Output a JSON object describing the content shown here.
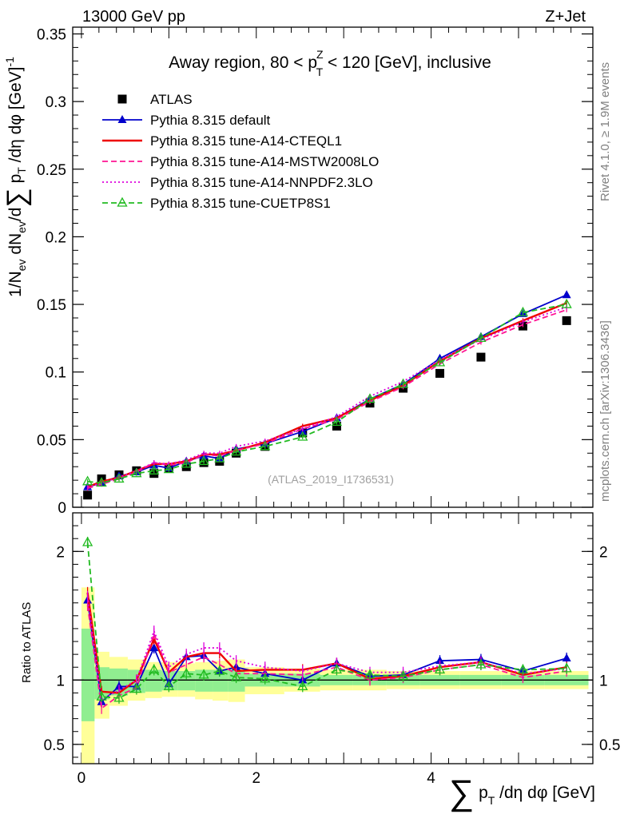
{
  "header": {
    "left": "13000 GeV pp",
    "right": "Z+Jet"
  },
  "side": {
    "rivet": "Rivet 4.1.0, ≥ 1.9M events",
    "mcplots": "mcplots.cern.ch [arXiv:1306.3436]"
  },
  "chart_data": [
    {
      "type": "scatter",
      "panel": "main",
      "title": "Away region, 80 < p_T^Z < 120 [GeV], inclusive",
      "ylabel": "1/N_ev dN_ev/d∑p_T /dη dφ [GeV^-1]",
      "xlabel": "∑p_T /dη dφ [GeV]",
      "watermark": "(ATLAS_2019_I1736531)",
      "xlim": [
        -0.1,
        5.85
      ],
      "ylim": [
        0,
        0.355
      ],
      "yticks": [
        0,
        0.05,
        0.1,
        0.15,
        0.2,
        0.25,
        0.3,
        0.35
      ],
      "ytick_labels": [
        "0",
        "0.05",
        "0.1",
        "0.15",
        "0.2",
        "0.25",
        "0.3",
        "0.35"
      ],
      "x": [
        0.07,
        0.23,
        0.43,
        0.63,
        0.83,
        1.0,
        1.2,
        1.4,
        1.58,
        1.77,
        2.1,
        2.53,
        2.92,
        3.3,
        3.68,
        4.1,
        4.57,
        5.05,
        5.55
      ],
      "series": [
        {
          "name": "ATLAS",
          "style": "data",
          "color": "#000000",
          "values": [
            0.009,
            0.021,
            0.024,
            0.027,
            0.025,
            0.029,
            0.03,
            0.033,
            0.034,
            0.04,
            0.045,
            0.055,
            0.06,
            0.077,
            0.088,
            0.099,
            0.111,
            0.134,
            0.138
          ]
        },
        {
          "name": "Pythia 8.315 default",
          "style": "solid-triangle",
          "color": "#0000cc",
          "values": [
            0.015,
            0.018,
            0.023,
            0.026,
            0.031,
            0.029,
            0.034,
            0.038,
            0.036,
            0.043,
            0.047,
            0.056,
            0.066,
            0.08,
            0.091,
            0.11,
            0.126,
            0.143,
            0.157
          ]
        },
        {
          "name": "Pythia 8.315 tune-A14-CTEQL1",
          "style": "solid",
          "color": "#ee0000",
          "values": [
            0.015,
            0.019,
            0.022,
            0.027,
            0.032,
            0.032,
            0.034,
            0.039,
            0.039,
            0.042,
            0.048,
            0.06,
            0.066,
            0.079,
            0.09,
            0.108,
            0.125,
            0.138,
            0.151
          ]
        },
        {
          "name": "Pythia 8.315 tune-A14-MSTW2008LO",
          "style": "dashed",
          "color": "#ff1493",
          "values": [
            0.014,
            0.017,
            0.021,
            0.026,
            0.033,
            0.031,
            0.033,
            0.039,
            0.038,
            0.042,
            0.047,
            0.058,
            0.065,
            0.078,
            0.089,
            0.106,
            0.122,
            0.135,
            0.146
          ]
        },
        {
          "name": "Pythia 8.315 tune-A14-NNPDF2.3LO",
          "style": "dotted",
          "color": "#dd00dd",
          "values": [
            0.015,
            0.018,
            0.022,
            0.027,
            0.033,
            0.032,
            0.035,
            0.04,
            0.04,
            0.045,
            0.049,
            0.058,
            0.067,
            0.082,
            0.093,
            0.109,
            0.124,
            0.137,
            0.148
          ]
        },
        {
          "name": "Pythia 8.315 tune-CUETP8S1",
          "style": "dashed-open-triangle",
          "color": "#22bb22",
          "values": [
            0.019,
            0.018,
            0.021,
            0.025,
            0.027,
            0.028,
            0.032,
            0.034,
            0.036,
            0.041,
            0.045,
            0.052,
            0.063,
            0.08,
            0.091,
            0.107,
            0.125,
            0.144,
            0.15
          ]
        }
      ]
    },
    {
      "type": "line",
      "panel": "ratio",
      "ylabel": "Ratio to ATLAS",
      "ylim": [
        0.35,
        2.3
      ],
      "yticks": [
        0.5,
        1,
        2
      ],
      "ytick_labels": [
        "0.5",
        "1",
        "2"
      ],
      "xticks": [
        0,
        2,
        4
      ],
      "xtick_labels": [
        "0",
        "2",
        "4"
      ],
      "bands": {
        "edges": [
          0.0,
          0.15,
          0.32,
          0.53,
          0.73,
          0.92,
          1.1,
          1.3,
          1.5,
          1.68,
          1.87,
          2.32,
          2.73,
          3.1,
          3.49,
          3.87,
          4.33,
          4.8,
          5.3,
          5.8
        ],
        "yellow": [
          [
            0.35,
            1.72
          ],
          [
            0.7,
            1.22
          ],
          [
            0.8,
            1.18
          ],
          [
            0.84,
            1.16
          ],
          [
            0.86,
            1.14
          ],
          [
            0.87,
            1.14
          ],
          [
            0.87,
            1.13
          ],
          [
            0.85,
            1.14
          ],
          [
            0.84,
            1.15
          ],
          [
            0.83,
            1.16
          ],
          [
            0.89,
            1.1
          ],
          [
            0.91,
            1.09
          ],
          [
            0.92,
            1.08
          ],
          [
            0.92,
            1.08
          ],
          [
            0.93,
            1.07
          ],
          [
            0.93,
            1.07
          ],
          [
            0.93,
            1.07
          ],
          [
            0.93,
            1.07
          ],
          [
            0.93,
            1.07
          ]
        ],
        "green": [
          [
            0.68,
            1.4
          ],
          [
            0.85,
            1.1
          ],
          [
            0.88,
            1.09
          ],
          [
            0.9,
            1.08
          ],
          [
            0.91,
            1.08
          ],
          [
            0.92,
            1.07
          ],
          [
            0.92,
            1.07
          ],
          [
            0.91,
            1.08
          ],
          [
            0.91,
            1.08
          ],
          [
            0.91,
            1.08
          ],
          [
            0.95,
            1.05
          ],
          [
            0.95,
            1.05
          ],
          [
            0.96,
            1.04
          ],
          [
            0.96,
            1.04
          ],
          [
            0.96,
            1.04
          ],
          [
            0.96,
            1.04
          ],
          [
            0.96,
            1.04
          ],
          [
            0.96,
            1.04
          ],
          [
            0.96,
            1.04
          ]
        ]
      },
      "x": [
        0.07,
        0.23,
        0.43,
        0.63,
        0.83,
        1.0,
        1.2,
        1.4,
        1.58,
        1.77,
        2.1,
        2.53,
        2.92,
        3.3,
        3.68,
        4.1,
        4.57,
        5.05,
        5.55
      ],
      "series": [
        {
          "name": "Pythia 8.315 default",
          "style": "solid-triangle",
          "color": "#0000cc",
          "values": [
            1.62,
            0.83,
            0.95,
            0.95,
            1.25,
            0.97,
            1.18,
            1.19,
            1.07,
            1.1,
            1.05,
            1.0,
            1.13,
            1.03,
            1.04,
            1.15,
            1.16,
            1.07,
            1.17
          ]
        },
        {
          "name": "Pythia 8.315 tune-A14-CTEQL1",
          "style": "solid",
          "color": "#ee0000",
          "values": [
            1.68,
            0.91,
            0.9,
            1.0,
            1.32,
            1.06,
            1.18,
            1.21,
            1.21,
            1.07,
            1.08,
            1.08,
            1.13,
            1.01,
            1.03,
            1.1,
            1.14,
            1.04,
            1.1
          ]
        },
        {
          "name": "Pythia 8.315 tune-A14-MSTW2008LO",
          "style": "dashed",
          "color": "#ff1493",
          "values": [
            1.58,
            0.78,
            0.88,
            0.94,
            1.36,
            1.06,
            1.12,
            1.18,
            1.12,
            1.05,
            1.05,
            1.04,
            1.1,
            1.0,
            1.02,
            1.08,
            1.12,
            1.02,
            1.07
          ]
        },
        {
          "name": "Pythia 8.315 tune-A14-NNPDF2.3LO",
          "style": "dotted",
          "color": "#dd00dd",
          "values": [
            1.65,
            0.85,
            0.92,
            1.0,
            1.38,
            1.1,
            1.2,
            1.25,
            1.25,
            1.15,
            1.1,
            1.07,
            1.13,
            1.06,
            1.06,
            1.11,
            1.14,
            1.05,
            1.09
          ]
        },
        {
          "name": "Pythia 8.315 tune-CUETP8S1",
          "style": "dashed-open-triangle",
          "color": "#22bb22",
          "values": [
            2.07,
            0.87,
            0.86,
            0.93,
            1.08,
            0.95,
            1.05,
            1.04,
            1.07,
            1.02,
            1.01,
            0.95,
            1.08,
            1.04,
            1.03,
            1.08,
            1.12,
            1.08,
            1.09
          ]
        }
      ]
    }
  ]
}
